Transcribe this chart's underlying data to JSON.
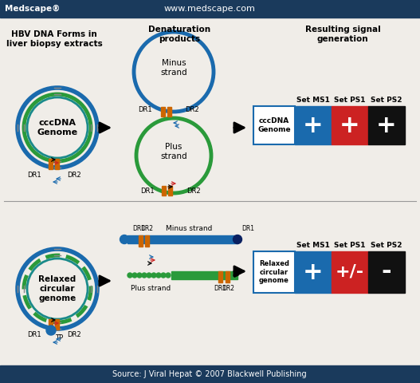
{
  "header_bg": "#1a3a5c",
  "header_text_left": "Medscape®",
  "header_text_center": "www.medscape.com",
  "footer_bg": "#1a3a5c",
  "footer_text": "Source: J Viral Hepat © 2007 Blackwell Publishing",
  "bg_color": "#f0ede8",
  "blue_color": "#1a6aad",
  "green_color": "#2a9a3a",
  "teal_color": "#1a8a8a",
  "orange_color": "#cc6600",
  "dark_blue": "#1a3a8c",
  "red_color": "#cc2222",
  "set_ms1_color": "#1a6aad",
  "set_ps1_color": "#cc2222",
  "set_ps2_color": "#111111",
  "col1_title": "HBV DNA Forms in\nliver biopsy extracts",
  "col2_title": "Denaturation\nproducts",
  "col3_title": "Resulting signal\ngeneration"
}
